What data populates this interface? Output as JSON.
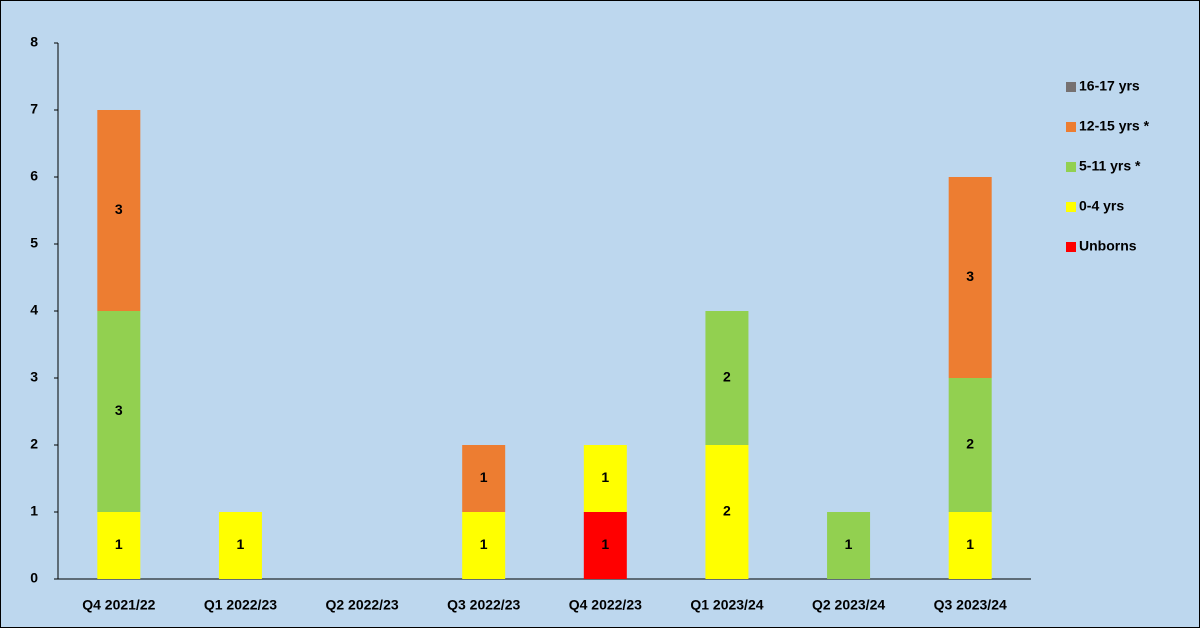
{
  "chart_data": {
    "type": "stacked_bar",
    "categories": [
      "Q4 2021/22",
      "Q1 2022/23",
      "Q2 2022/23",
      "Q3 2022/23",
      "Q4 2022/23",
      "Q1 2023/24",
      "Q2 2023/24",
      "Q3 2023/24"
    ],
    "series": [
      {
        "name": "Unborns",
        "color": "#ff0000",
        "values": [
          null,
          null,
          null,
          null,
          1,
          null,
          null,
          null
        ]
      },
      {
        "name": "0-4 yrs",
        "color": "#ffff00",
        "values": [
          1,
          1,
          null,
          1,
          1,
          2,
          null,
          1
        ]
      },
      {
        "name": "5-11 yrs *",
        "color": "#92d050",
        "values": [
          3,
          null,
          null,
          null,
          null,
          2,
          1,
          2
        ]
      },
      {
        "name": "12-15 yrs *",
        "color": "#ed7d31",
        "values": [
          3,
          null,
          null,
          1,
          null,
          null,
          null,
          3
        ]
      },
      {
        "name": "16-17 yrs",
        "color": "#767171",
        "values": [
          null,
          null,
          null,
          null,
          null,
          null,
          null,
          null
        ]
      }
    ],
    "ylim": [
      0,
      8
    ],
    "yticks": [
      0,
      1,
      2,
      3,
      4,
      5,
      6,
      7,
      8
    ],
    "grid": false,
    "legend": "right"
  }
}
